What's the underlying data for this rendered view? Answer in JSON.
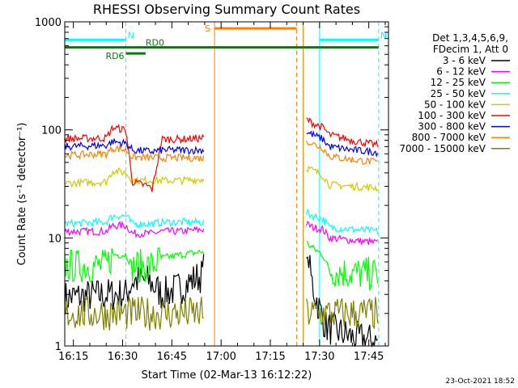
{
  "chart_data": {
    "type": "line",
    "title": "RHESSI Observing Summary Count Rates",
    "xlabel": "Start Time (02-Mar-13 16:12:22)",
    "ylabel": "Count Rate (s⁻¹ detector⁻¹)",
    "y_scale": "log",
    "ylim": [
      1,
      1000
    ],
    "xlim": [
      "16:12:22",
      "17:51:00"
    ],
    "x_ticks": [
      "16:15",
      "16:30",
      "16:45",
      "17:00",
      "17:15",
      "17:30",
      "17:45"
    ],
    "y_ticks": [
      "1",
      "10",
      "100",
      "1000"
    ],
    "grid": false,
    "legend": {
      "position": "top-right",
      "header": [
        "Det 1,3,4,5,6,9,",
        "FDecim 1, Att 0"
      ]
    },
    "series": [
      {
        "name": "3 - 6 keV",
        "color": "#000000",
        "segments": [
          {
            "x": [
              "16:12:22",
              "16:26",
              "16:31",
              "16:33",
              "16:38",
              "16:42",
              "16:48",
              "16:52",
              "16:54",
              "16:55"
            ],
            "y": [
              2.8,
              3.0,
              3.0,
              4.0,
              4.0,
              3.0,
              3.5,
              4.2,
              4.5,
              5.5
            ]
          },
          {
            "x": [
              "17:26",
              "17:27",
              "17:28",
              "17:30",
              "17:32",
              "17:40",
              "17:48"
            ],
            "y": [
              7.0,
              5.0,
              3.5,
              2.2,
              1.5,
              1.2,
              1.1
            ]
          }
        ]
      },
      {
        "name": "6 - 12 keV",
        "color": "#ff00ff",
        "segments": [
          {
            "x": [
              "16:12:22",
              "16:25",
              "16:27",
              "16:31",
              "16:33",
              "16:39",
              "16:42",
              "16:48",
              "16:52",
              "16:55"
            ],
            "y": [
              11.5,
              11.5,
              13.0,
              13.0,
              11.0,
              11.0,
              11.5,
              11.5,
              11.8,
              12.0
            ]
          },
          {
            "x": [
              "17:26",
              "17:28",
              "17:31",
              "17:33",
              "17:40",
              "17:48"
            ],
            "y": [
              13.5,
              12.5,
              12.0,
              10.0,
              9.5,
              9.0
            ]
          }
        ]
      },
      {
        "name": "12 - 25 keV",
        "color": "#00ff00",
        "segments": [
          {
            "x": [
              "16:12:22",
              "16:25",
              "16:27",
              "16:31",
              "16:33",
              "16:39",
              "16:42",
              "16:48",
              "16:55"
            ],
            "y": [
              5.5,
              5.5,
              7.0,
              7.0,
              5.5,
              5.5,
              6.5,
              7.0,
              7.5
            ]
          },
          {
            "x": [
              "17:26",
              "17:28",
              "17:31",
              "17:33",
              "17:40",
              "17:48"
            ],
            "y": [
              9.0,
              8.0,
              7.0,
              5.0,
              4.7,
              4.6
            ]
          }
        ]
      },
      {
        "name": "25 - 50 keV",
        "color": "#00ffff",
        "segments": [
          {
            "x": [
              "16:12:22",
              "16:25",
              "16:27",
              "16:31",
              "16:33",
              "16:39",
              "16:42",
              "16:48",
              "16:55"
            ],
            "y": [
              13.5,
              14.0,
              16.0,
              16.0,
              13.5,
              13.5,
              14.0,
              14.0,
              14.0
            ]
          },
          {
            "x": [
              "17:26",
              "17:28",
              "17:31",
              "17:33",
              "17:40",
              "17:48"
            ],
            "y": [
              17.0,
              16.0,
              15.0,
              12.5,
              12.0,
              11.5
            ]
          }
        ]
      },
      {
        "name": "50 - 100 keV",
        "color": "#d2c800",
        "segments": [
          {
            "x": [
              "16:12:22",
              "16:25",
              "16:27",
              "16:31",
              "16:33",
              "16:39",
              "16:42",
              "16:48",
              "16:55"
            ],
            "y": [
              32.0,
              33.0,
              42.0,
              40.0,
              34.0,
              34.0,
              34.0,
              34.0,
              35.0
            ]
          },
          {
            "x": [
              "17:26",
              "17:28",
              "17:31",
              "17:33",
              "17:40",
              "17:48"
            ],
            "y": [
              45.0,
              42.0,
              38.0,
              31.0,
              30.0,
              29.0
            ]
          }
        ]
      },
      {
        "name": "100 - 300 keV",
        "color": "#ff0000",
        "segments": [
          {
            "x": [
              "16:12:22",
              "16:25",
              "16:27",
              "16:31",
              "16:33",
              "16:38",
              "16:39",
              "16:42",
              "16:48",
              "16:55"
            ],
            "y": [
              83.0,
              84.0,
              105.0,
              100.0,
              33.0,
              30.0,
              28.0,
              82.0,
              82.0,
              84.0
            ]
          },
          {
            "x": [
              "17:26",
              "17:28",
              "17:31",
              "17:33",
              "17:40",
              "17:48"
            ],
            "y": [
              125.0,
              115.0,
              105.0,
              90.0,
              80.0,
              72.0
            ]
          }
        ]
      },
      {
        "name": "300 - 800 keV",
        "color": "#0000ff",
        "segments": [
          {
            "x": [
              "16:12:22",
              "16:25",
              "16:27",
              "16:31",
              "16:33",
              "16:39",
              "16:42",
              "16:48",
              "16:55"
            ],
            "y": [
              70.0,
              72.0,
              78.0,
              75.0,
              65.0,
              63.0,
              65.0,
              65.0,
              65.0
            ]
          },
          {
            "x": [
              "17:26",
              "17:28",
              "17:31",
              "17:33",
              "17:40",
              "17:48"
            ],
            "y": [
              95.0,
              90.0,
              82.0,
              70.0,
              65.0,
              62.0
            ]
          }
        ]
      },
      {
        "name": "800 - 7000 keV",
        "color": "#ff8000",
        "segments": [
          {
            "x": [
              "16:12:22",
              "16:25",
              "16:27",
              "16:31",
              "16:33",
              "16:39",
              "16:42",
              "16:48",
              "16:55"
            ],
            "y": [
              58.0,
              60.0,
              68.0,
              65.0,
              56.0,
              55.0,
              55.0,
              55.0,
              55.0
            ]
          },
          {
            "x": [
              "17:26",
              "17:28",
              "17:31",
              "17:33",
              "17:40",
              "17:48"
            ],
            "y": [
              80.0,
              74.0,
              68.0,
              57.0,
              53.0,
              50.0
            ]
          }
        ]
      },
      {
        "name": "7000 - 15000 keV",
        "color": "#808000",
        "segments": [
          {
            "x": [
              "16:12:22",
              "16:30",
              "16:40",
              "16:55"
            ],
            "y": [
              2.0,
              2.0,
              2.0,
              2.0
            ]
          },
          {
            "x": [
              "17:26",
              "17:35",
              "17:48"
            ],
            "y": [
              2.0,
              2.0,
              2.0
            ]
          }
        ]
      }
    ],
    "flags": [
      {
        "label": "N",
        "color": "#00ffff",
        "x": [
          "16:12:22",
          "16:31"
        ],
        "y": 680
      },
      {
        "label": "N",
        "color": "#00ffff",
        "x": [
          "17:30",
          "17:48"
        ],
        "y": 680
      },
      {
        "label": "S",
        "color": "#ff8000",
        "x": [
          "16:58",
          "17:23"
        ],
        "y": 870
      },
      {
        "label": "RD0",
        "color": "#008000",
        "x": [
          "16:12:22",
          "17:48"
        ],
        "y": 580
      },
      {
        "label": "RD6",
        "color": "#008000",
        "x": [
          "16:31",
          "16:37"
        ],
        "y": 510
      }
    ],
    "vlines": [
      {
        "x": "16:12:22",
        "color": "#00ffff",
        "style": "solid"
      },
      {
        "x": "16:31",
        "color": "#00ffff",
        "style": "dashed"
      },
      {
        "x": "16:58",
        "color": "#ff8000",
        "style": "solid"
      },
      {
        "x": "17:23",
        "color": "#ff8000",
        "style": "dashed"
      },
      {
        "x": "17:25",
        "color": "#ff8000",
        "style": "solid"
      },
      {
        "x": "17:30",
        "color": "#00ffff",
        "style": "solid"
      },
      {
        "x": "17:48",
        "color": "#00ffff",
        "style": "dashed"
      }
    ]
  },
  "footer": {
    "timestamp": "23-Oct-2021 18:52"
  }
}
